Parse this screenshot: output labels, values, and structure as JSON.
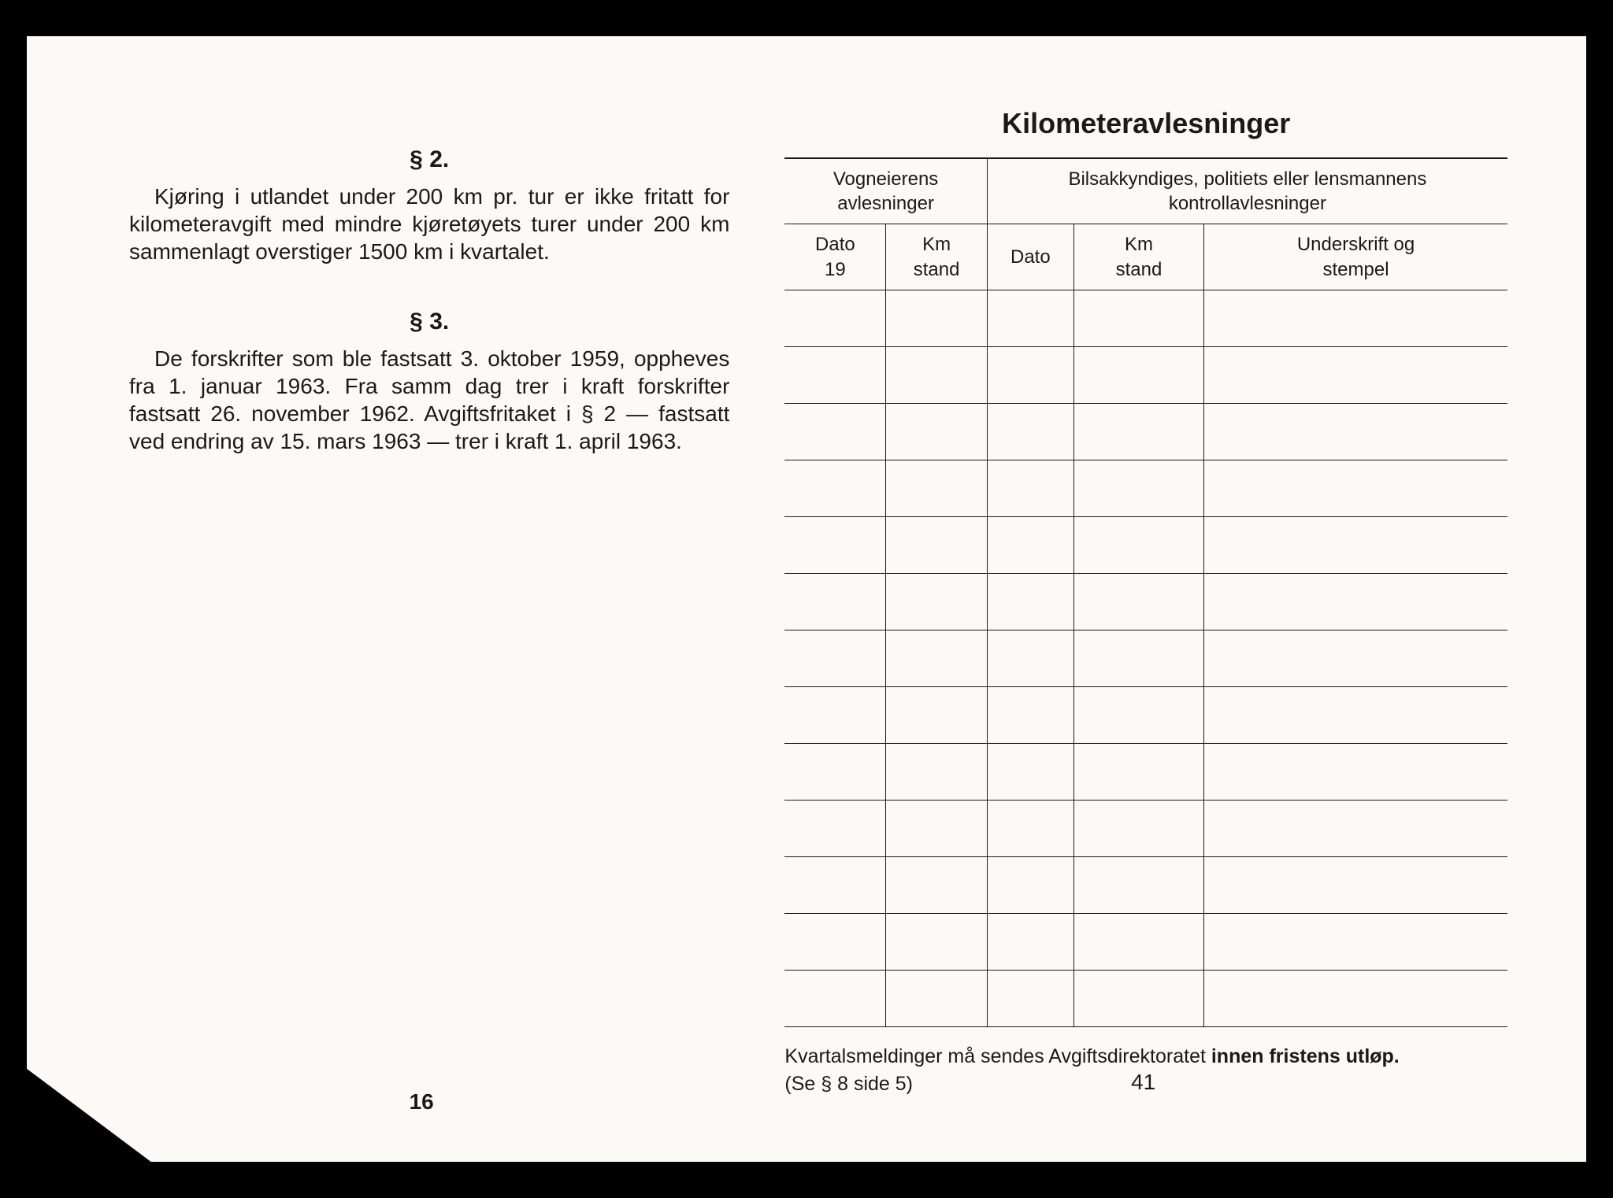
{
  "left": {
    "section2": {
      "heading": "§ 2.",
      "text": "Kjøring i utlandet under 200 km pr. tur er ikke fritatt for kilometeravgift med mindre kjøretøyets turer under 200 km sammenlagt overstiger 1500 km i kvartalet."
    },
    "section3": {
      "heading": "§ 3.",
      "text": "De forskrifter som ble fastsatt 3. oktober 1959, oppheves fra 1. januar 1963. Fra samm dag trer i kraft forskrifter fastsatt 26. november 1962. Avgiftsfritaket i § 2 — fastsatt ved endring av 15. mars 1963 — trer i kraft 1. april 1963."
    },
    "page_number": "16"
  },
  "right": {
    "title": "Kilometeravlesninger",
    "table": {
      "group_headers": {
        "owner": "Vogneierens avlesninger",
        "control": "Bilsakkyndiges, politiets eller lensmannens kontrollavlesninger"
      },
      "sub_headers": {
        "dato1_line1": "Dato",
        "dato1_line2": "19",
        "km1_line1": "Km",
        "km1_line2": "stand",
        "dato2": "Dato",
        "km2_line1": "Km",
        "km2_line2": "stand",
        "sig_line1": "Underskrift og",
        "sig_line2": "stempel"
      },
      "row_count": 13,
      "column_widths_pct": [
        14,
        14,
        12,
        18,
        42
      ],
      "border_color": "#1a1a1a",
      "background_color": "#fcfaf6"
    },
    "footer_line1_a": "Kvartalsmeldinger må sendes Avgiftsdirektoratet ",
    "footer_line1_b": "innen fristens utløp.",
    "footer_line2": "(Se § 8 side 5)",
    "page_number": "41"
  },
  "styling": {
    "page_bg": "#fcfaf6",
    "outer_bg": "#000000",
    "text_color": "#1a1a1a",
    "title_fontsize": 36,
    "heading_fontsize": 30,
    "body_fontsize": 28,
    "table_header_fontsize": 24,
    "footer_fontsize": 25
  }
}
